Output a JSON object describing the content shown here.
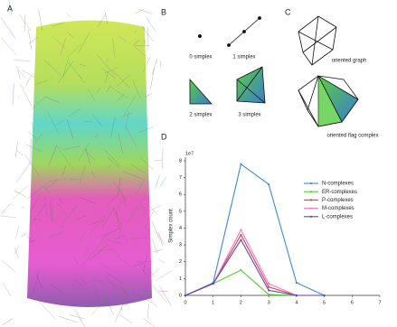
{
  "panels": {
    "labels": [
      "A",
      "B",
      "C",
      "D"
    ],
    "simplices": [
      "0 simplex",
      "1 simplex",
      "2 simplex",
      "3 simplex"
    ],
    "graphs": [
      "oriented graph",
      "oriented flag complex"
    ]
  },
  "chart_data": {
    "type": "line",
    "ylabel": "Simplex count",
    "y_multiplier": "1e7",
    "x": [
      0,
      1,
      2,
      3,
      4,
      5
    ],
    "series": [
      {
        "name": "N-complexes",
        "color": "#3b8bd0",
        "values": [
          0,
          0.75,
          7.8,
          6.6,
          0.75,
          0
        ]
      },
      {
        "name": "ER-complexes",
        "color": "#55cc33",
        "values": [
          0,
          0.7,
          1.5,
          0.05,
          0,
          0
        ]
      },
      {
        "name": "P-complexes",
        "color": "#e0403a",
        "values": [
          0,
          0.7,
          3.6,
          0.5,
          0,
          0
        ]
      },
      {
        "name": "M-complexes",
        "color": "#f07ad0",
        "values": [
          0,
          0.7,
          3.9,
          0.7,
          0,
          0
        ]
      },
      {
        "name": "L-complexes",
        "color": "#5a3fc0",
        "values": [
          0,
          0.7,
          3.3,
          0.3,
          0,
          0
        ]
      }
    ],
    "xlim": [
      0,
      7
    ],
    "ylim": [
      0,
      8
    ],
    "xticks": [
      0,
      1,
      2,
      3,
      4,
      5,
      6,
      7
    ],
    "yticks": [
      0,
      1,
      2,
      3,
      4,
      5,
      6,
      7,
      8
    ],
    "legend": "upper right"
  }
}
